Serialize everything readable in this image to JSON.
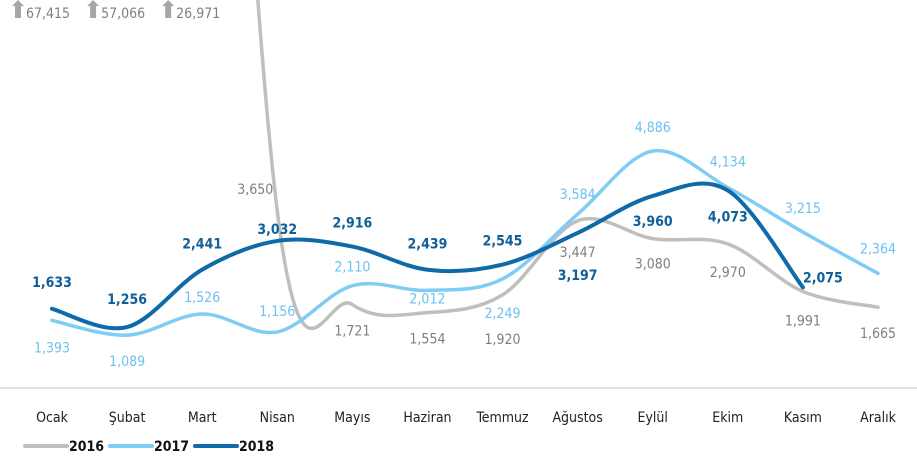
{
  "chart_data": {
    "type": "line",
    "categories": [
      "Ocak",
      "Şubat",
      "Mart",
      "Nisan",
      "Mayıs",
      "Haziran",
      "Temmuz",
      "Ağustos",
      "Eylül",
      "Ekim",
      "Kasım",
      "Aralık"
    ],
    "ylim": [
      0,
      8000
    ],
    "series": [
      {
        "name": "2016",
        "color": "#bfbfbf",
        "label_color": "#7f7f7f",
        "values": [
          67415,
          57066,
          26971,
          3650,
          1721,
          1554,
          1920,
          3447,
          3080,
          2970,
          1991,
          1665
        ],
        "value_labels": [
          "67,415",
          "57,066",
          "26,971",
          "3,650",
          "1,721",
          "1,554",
          "1,920",
          "3,447",
          "3,080",
          "2,970",
          "1,991",
          "1,665"
        ]
      },
      {
        "name": "2017",
        "color": "#7fcdf5",
        "label_color": "#6cc1ef",
        "values": [
          1393,
          1089,
          1526,
          1156,
          2110,
          2012,
          2249,
          3584,
          4886,
          4134,
          3215,
          2364
        ],
        "value_labels": [
          "1,393",
          "1,089",
          "1,526",
          "1,156",
          "2,110",
          "2,012",
          "2,249",
          "3,584",
          "4,886",
          "4,134",
          "3,215",
          "2,364"
        ]
      },
      {
        "name": "2018",
        "color": "#0f6aa8",
        "label_color": "#0f5f99",
        "values": [
          1633,
          1256,
          2441,
          3032,
          2916,
          2439,
          2545,
          3197,
          3960,
          4073,
          2075,
          null
        ],
        "value_labels": [
          "1,633",
          "1,256",
          "2,441",
          "3,032",
          "2,916",
          "2,439",
          "2,545",
          "3,197",
          "3,960",
          "4,073",
          "2,075",
          null
        ]
      }
    ]
  }
}
